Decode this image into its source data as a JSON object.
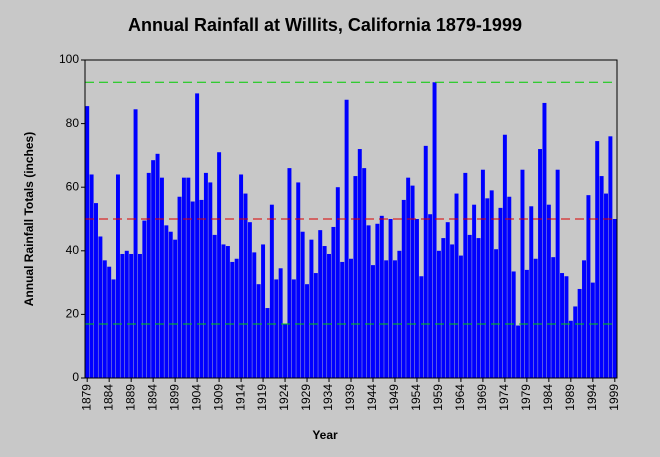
{
  "chart_data": {
    "type": "bar",
    "title": "Annual Rainfall at Willits, California 1879-1999",
    "x_label": "Year",
    "y_label": "Annual Rainfall Totals (inches)",
    "x": [
      1879,
      1880,
      1881,
      1882,
      1883,
      1884,
      1885,
      1886,
      1887,
      1888,
      1889,
      1890,
      1891,
      1892,
      1893,
      1894,
      1895,
      1896,
      1897,
      1898,
      1899,
      1900,
      1901,
      1902,
      1903,
      1904,
      1905,
      1906,
      1907,
      1908,
      1909,
      1910,
      1911,
      1912,
      1913,
      1914,
      1915,
      1916,
      1917,
      1918,
      1919,
      1920,
      1921,
      1922,
      1923,
      1924,
      1925,
      1926,
      1927,
      1928,
      1929,
      1930,
      1931,
      1932,
      1933,
      1934,
      1935,
      1936,
      1937,
      1938,
      1939,
      1940,
      1941,
      1942,
      1943,
      1944,
      1945,
      1946,
      1947,
      1948,
      1949,
      1950,
      1951,
      1952,
      1953,
      1954,
      1955,
      1956,
      1957,
      1958,
      1959,
      1960,
      1961,
      1962,
      1963,
      1964,
      1965,
      1966,
      1967,
      1968,
      1969,
      1970,
      1971,
      1972,
      1973,
      1974,
      1975,
      1976,
      1977,
      1978,
      1979,
      1980,
      1981,
      1982,
      1983,
      1984,
      1985,
      1986,
      1987,
      1988,
      1989,
      1990,
      1991,
      1992,
      1993,
      1994,
      1995,
      1996,
      1997,
      1998,
      1999
    ],
    "values": [
      85.5,
      64,
      55,
      44.5,
      37,
      35,
      31,
      64,
      39,
      40,
      39,
      84.5,
      39,
      49.5,
      64.5,
      68.5,
      70.5,
      63,
      48,
      46,
      43.5,
      57,
      63,
      63,
      55.5,
      89.5,
      56,
      64.5,
      61.5,
      45,
      71,
      42,
      41.5,
      36.5,
      37.5,
      64,
      58,
      49,
      39.5,
      29.5,
      42,
      22,
      54.5,
      31,
      34.5,
      17,
      66,
      31,
      61.5,
      46,
      29.5,
      43.5,
      33,
      46.5,
      41.5,
      39,
      47.5,
      60,
      36.5,
      87.5,
      37.5,
      63.5,
      72,
      66,
      48,
      35.5,
      48.5,
      51,
      37,
      50,
      37,
      40,
      56,
      63,
      60.5,
      50,
      32,
      73,
      51.5,
      93,
      40,
      44,
      49,
      42,
      58,
      38.5,
      64.5,
      45,
      54.5,
      44,
      65.5,
      56.5,
      59,
      40.5,
      53.5,
      76.5,
      57,
      33.5,
      16.5,
      65.5,
      34,
      54,
      37.5,
      72,
      86.5,
      54.5,
      38,
      65.5,
      33,
      32,
      18,
      22.5,
      28,
      37,
      57.5,
      30,
      74.5,
      63.5,
      58,
      76,
      50
    ],
    "color": "#0000ff",
    "xlim": [
      1878.5,
      1999.5
    ],
    "xticks": [
      1879,
      1884,
      1889,
      1894,
      1899,
      1904,
      1909,
      1914,
      1919,
      1924,
      1929,
      1934,
      1939,
      1944,
      1949,
      1954,
      1959,
      1964,
      1969,
      1974,
      1979,
      1984,
      1989,
      1994,
      1999
    ],
    "ylim": [
      0,
      100
    ],
    "yticks": [
      0,
      20,
      40,
      60,
      80,
      100
    ],
    "reference_lines": [
      {
        "value": 93,
        "color": "#00cc00"
      },
      {
        "value": 50,
        "color": "#dd0000"
      },
      {
        "value": 17,
        "color": "#00cc00"
      }
    ]
  }
}
